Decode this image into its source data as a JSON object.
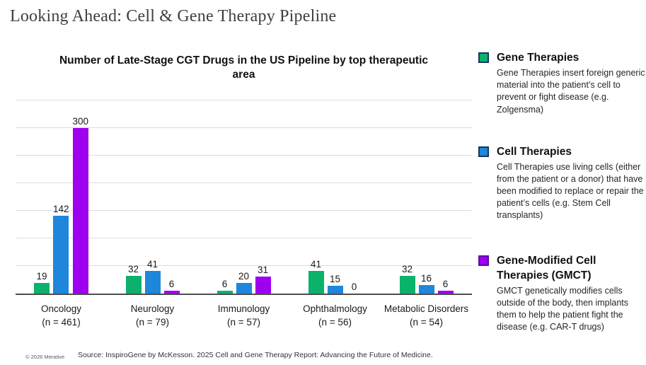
{
  "page": {
    "title": "Looking Ahead: Cell & Gene Therapy Pipeline",
    "footer_copyright": "© 2026 Merative",
    "footer_source": "Source: InspiroGene by McKesson. 2025 Cell and Gene Therapy Report: Advancing the Future of Medicine."
  },
  "chart_data": {
    "type": "bar",
    "title": "Number of Late-Stage CGT Drugs in the US Pipeline by top therapeutic area",
    "categories": [
      "Oncology",
      "Neurology",
      "Immunology",
      "Ophthalmology",
      "Metabolic Disorders"
    ],
    "category_subtitles": [
      "(n = 461)",
      "(n = 79)",
      "(n = 57)",
      "(n = 56)",
      "(n = 54)"
    ],
    "series": [
      {
        "name": "Gene Therapies",
        "color": "#0cb26b",
        "values": [
          19,
          32,
          6,
          41,
          32
        ]
      },
      {
        "name": "Cell Therapies",
        "color": "#1e86db",
        "values": [
          142,
          41,
          20,
          15,
          16
        ]
      },
      {
        "name": "Gene-Modified Cell Therapies (GMCT)",
        "color": "#9e00f0",
        "values": [
          300,
          6,
          31,
          0,
          6
        ]
      }
    ],
    "xlabel": "",
    "ylabel": "",
    "ylim": [
      0,
      350
    ],
    "gridline_interval": 50,
    "grid": true,
    "legend_position": "right",
    "value_labels": true
  },
  "legend": {
    "items": [
      {
        "title": "Gene Therapies",
        "swatch_color": "#0cb26b",
        "swatch_border": "#17375e",
        "description": "Gene Therapies insert foreign generic material into the patient’s cell to prevent or fight disease (e.g. Zolgensma)"
      },
      {
        "title": "Cell Therapies",
        "swatch_color": "#1e86db",
        "swatch_border": "#17375e",
        "description": "Cell Therapies use living cells (either from the patient or a donor) that have been modified to replace or repair the patient’s cells (e.g. Stem Cell transplants)"
      },
      {
        "title": "Gene-Modified Cell Therapies (GMCT)",
        "swatch_color": "#9e00f0",
        "swatch_border": "#5a0e9e",
        "description": "GMCT genetically modifies cells outside of the body, then implants them to help the patient fight the disease (e.g. CAR-T drugs)"
      }
    ]
  }
}
